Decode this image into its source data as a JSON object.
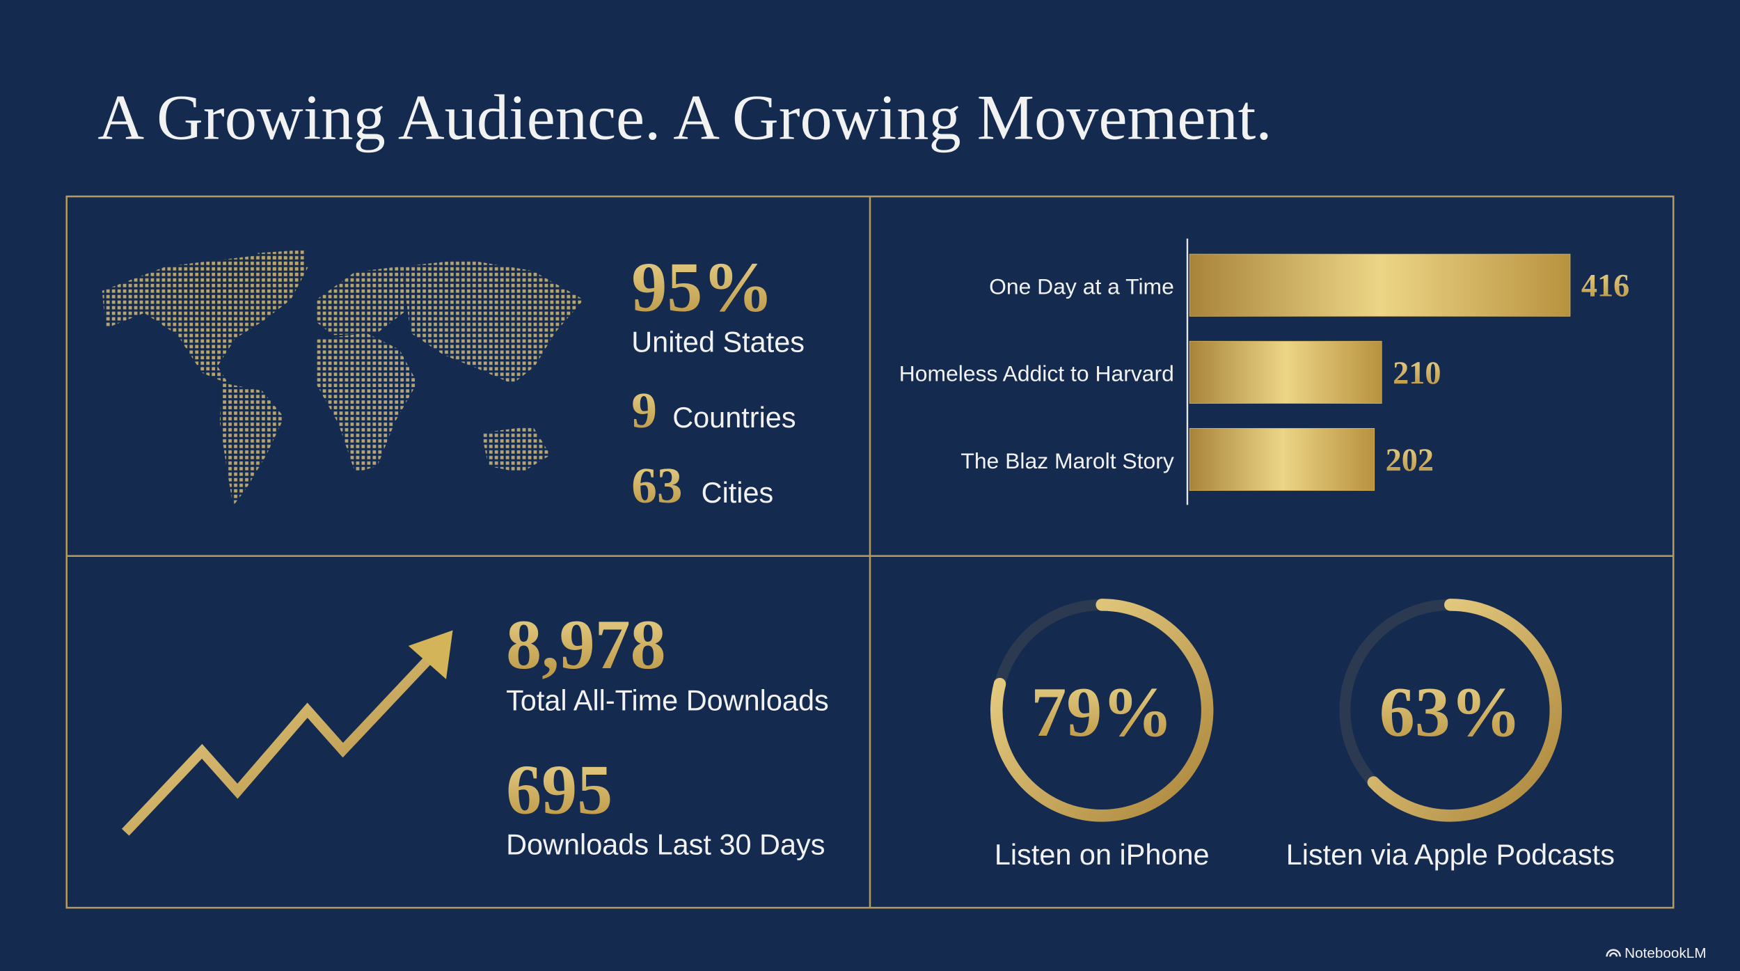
{
  "title": "A Growing Audience. A Growing Movement.",
  "geography": {
    "share": "95%",
    "share_label": "United States",
    "countries": "9",
    "countries_label": "Countries",
    "cities": "63",
    "cities_label": "Cities"
  },
  "downloads": {
    "total": "8,978",
    "total_label": "Total All-Time Downloads",
    "recent": "695",
    "recent_label": "Downloads Last 30 Days"
  },
  "chart_data": [
    {
      "type": "bar",
      "orientation": "horizontal",
      "categories": [
        "One Day at a Time",
        "Homeless Addict to Harvard",
        "The Blaz Marolt Story"
      ],
      "values": [
        416,
        210,
        202
      ],
      "color": "#d4b458"
    },
    {
      "type": "ring",
      "categories": [
        "Listen on iPhone",
        "Listen via Apple Podcasts"
      ],
      "values": [
        79,
        63
      ],
      "value_labels": [
        "79%",
        "63%"
      ],
      "color": "#d4b458"
    }
  ],
  "footer": "NotebookLM"
}
